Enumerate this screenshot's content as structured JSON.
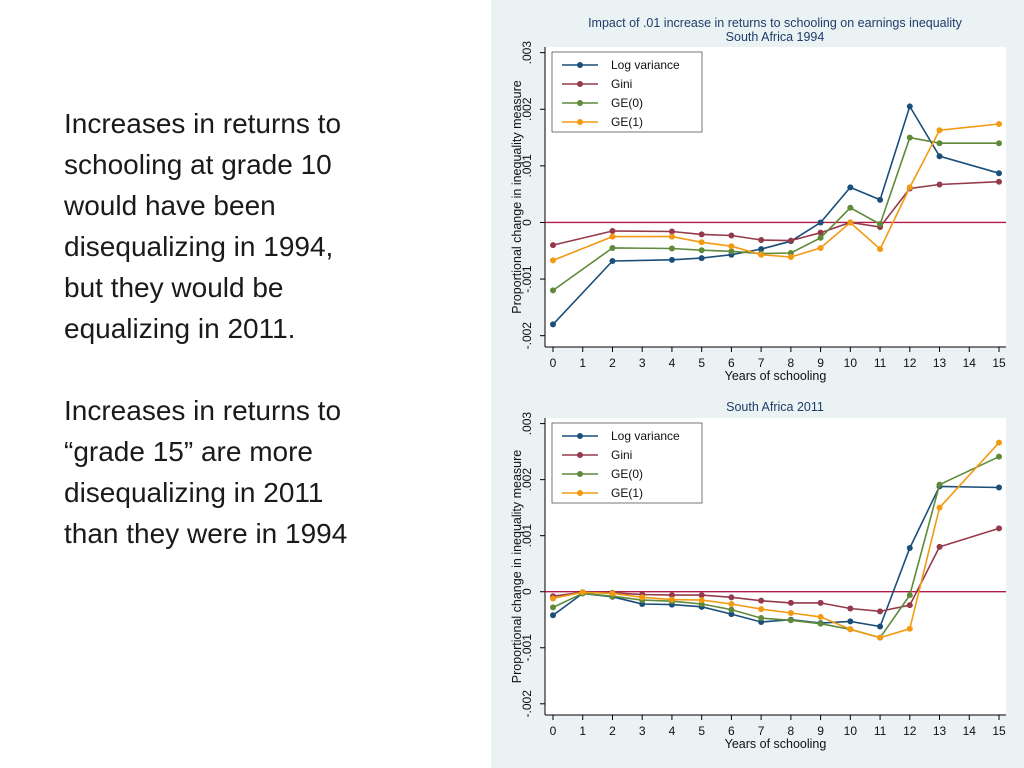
{
  "paragraphs": [
    "Increases in returns to\nschooling at grade 10\nwould have been\ndisequalizing in 1994,\nbut they would be\nequalizing in 2011.",
    "Increases in returns to\n“grade 15” are more\ndisequalizing in 2011\nthan they were in 1994"
  ],
  "colors": {
    "panel_bg": "#eaf2f3",
    "plot_bg": "#ffffff",
    "zero_line": "#b01c44",
    "title": "#1f3d6b",
    "log_variance": "#1b4f7a",
    "gini": "#943a4b",
    "ge0": "#5f8a3a",
    "ge1": "#f29a12"
  },
  "chart_data": [
    {
      "type": "line",
      "title": "Impact of .01 increase in returns to schooling on earnings inequality",
      "subtitle": "South Africa 1994",
      "xlabel": "Years of schooling",
      "ylabel": "Proportional change in inequality measure",
      "x": [
        0,
        2,
        4,
        5,
        6,
        7,
        8,
        9,
        10,
        11,
        12,
        13,
        15
      ],
      "xticks": [
        "0",
        "1",
        "2",
        "3",
        "4",
        "5",
        "6",
        "7",
        "8",
        "9",
        "10",
        "11",
        "12",
        "13",
        "14",
        "15"
      ],
      "yticks": [
        "-.002",
        "-.001",
        "0",
        ".001",
        ".002",
        ".003"
      ],
      "ylim": [
        -0.0022,
        0.0031
      ],
      "legend_position": "top-left",
      "series": [
        {
          "name": "Log variance",
          "color": "#1b4f7a",
          "values": [
            -0.0018,
            -0.00068,
            -0.00066,
            -0.00063,
            -0.00057,
            -0.00047,
            -0.00033,
            0.0,
            0.00062,
            0.0004,
            0.00205,
            0.00117,
            0.00087
          ]
        },
        {
          "name": "Gini",
          "color": "#943a4b",
          "values": [
            -0.0004,
            -0.00015,
            -0.00016,
            -0.00021,
            -0.00023,
            -0.00031,
            -0.00032,
            -0.00018,
            0.0,
            -8e-05,
            0.0006,
            0.00067,
            0.00072
          ]
        },
        {
          "name": "GE(0)",
          "color": "#5f8a3a",
          "values": [
            -0.0012,
            -0.00045,
            -0.00046,
            -0.00049,
            -0.00051,
            -0.00055,
            -0.00054,
            -0.00027,
            0.00026,
            -3e-05,
            0.0015,
            0.0014,
            0.0014
          ]
        },
        {
          "name": "GE(1)",
          "color": "#f29a12",
          "values": [
            -0.00067,
            -0.00025,
            -0.00025,
            -0.00035,
            -0.00042,
            -0.00057,
            -0.00061,
            -0.00045,
            0.0,
            -0.00047,
            0.00062,
            0.00163,
            0.00174
          ]
        }
      ]
    },
    {
      "type": "line",
      "title": "South Africa 2011",
      "xlabel": "Years of schooling",
      "ylabel": "Proportional change in inequality measure",
      "x": [
        0,
        1,
        2,
        3,
        4,
        5,
        6,
        7,
        8,
        9,
        10,
        11,
        12,
        13,
        15
      ],
      "xticks": [
        "0",
        "1",
        "2",
        "3",
        "4",
        "5",
        "6",
        "7",
        "8",
        "9",
        "10",
        "11",
        "12",
        "13",
        "14",
        "15"
      ],
      "yticks": [
        "-.002",
        "-.001",
        "0",
        ".001",
        ".002",
        ".003"
      ],
      "ylim": [
        -0.0022,
        0.0031
      ],
      "legend_position": "top-left",
      "series": [
        {
          "name": "Log variance",
          "color": "#1b4f7a",
          "values": [
            -0.00042,
            -3e-05,
            -9e-05,
            -0.00022,
            -0.00023,
            -0.00027,
            -0.0004,
            -0.00054,
            -0.0005,
            -0.00056,
            -0.00053,
            -0.00062,
            0.00078,
            0.00188,
            0.00186
          ]
        },
        {
          "name": "Gini",
          "color": "#943a4b",
          "values": [
            -8e-05,
            -1e-05,
            -2e-05,
            -5e-05,
            -6e-05,
            -6e-05,
            -0.0001,
            -0.00016,
            -0.0002,
            -0.0002,
            -0.0003,
            -0.00035,
            -0.00024,
            0.0008,
            0.00113
          ]
        },
        {
          "name": "GE(0)",
          "color": "#5f8a3a",
          "values": [
            -0.00028,
            -3e-05,
            -8e-05,
            -0.00015,
            -0.00017,
            -0.00022,
            -0.00032,
            -0.00047,
            -0.00051,
            -0.00057,
            -0.00067,
            -0.00082,
            -6e-05,
            0.00191,
            0.00241
          ]
        },
        {
          "name": "GE(1)",
          "color": "#f29a12",
          "values": [
            -0.00012,
            -1e-05,
            -3e-05,
            -0.0001,
            -0.00014,
            -0.00015,
            -0.00022,
            -0.00031,
            -0.00038,
            -0.00045,
            -0.00067,
            -0.00082,
            -0.00066,
            0.0015,
            0.00266
          ]
        }
      ]
    }
  ]
}
